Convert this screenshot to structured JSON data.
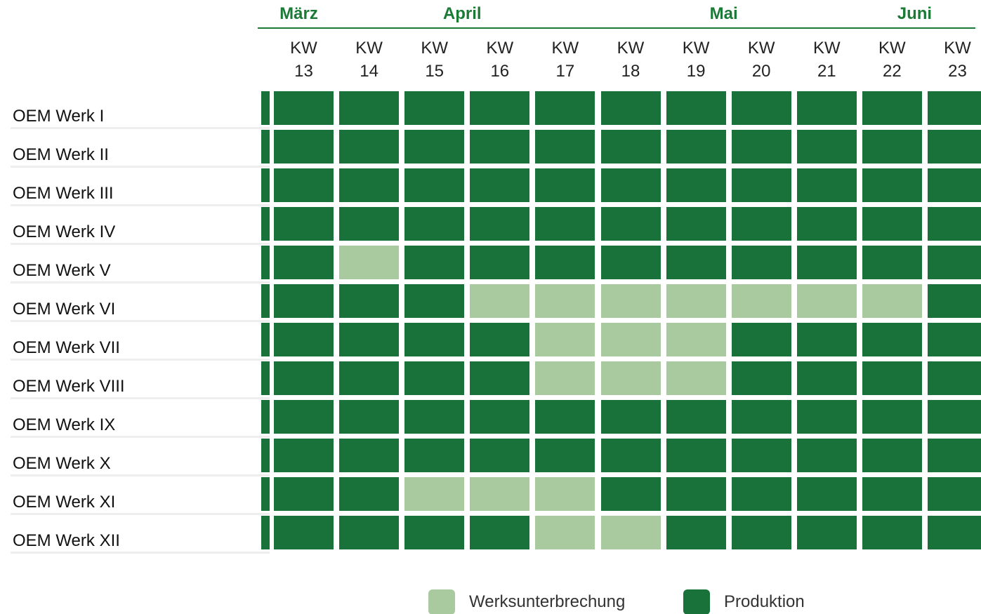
{
  "months": [
    {
      "label": "März",
      "from": 1,
      "to": 1
    },
    {
      "label": "April",
      "from": 2,
      "to": 5
    },
    {
      "label": "Mai",
      "from": 6,
      "to": 9
    },
    {
      "label": "Juni",
      "from": 10,
      "to": 11
    }
  ],
  "weeks": [
    null,
    "KW 13",
    "KW 14",
    "KW 15",
    "KW 16",
    "KW 17",
    "KW 18",
    "KW 19",
    "KW 20",
    "KW 21",
    "KW 22",
    "KW 23"
  ],
  "rows": [
    {
      "label": "OEM Werk I",
      "cells": [
        1,
        1,
        1,
        1,
        1,
        1,
        1,
        1,
        1,
        1,
        1,
        1
      ]
    },
    {
      "label": "OEM Werk II",
      "cells": [
        1,
        1,
        1,
        1,
        1,
        1,
        1,
        1,
        1,
        1,
        1,
        1
      ]
    },
    {
      "label": "OEM Werk III",
      "cells": [
        1,
        1,
        1,
        1,
        1,
        1,
        1,
        1,
        1,
        1,
        1,
        1
      ]
    },
    {
      "label": "OEM Werk IV",
      "cells": [
        1,
        1,
        1,
        1,
        1,
        1,
        1,
        1,
        1,
        1,
        1,
        1
      ]
    },
    {
      "label": "OEM Werk V",
      "cells": [
        1,
        1,
        0,
        1,
        1,
        1,
        1,
        1,
        1,
        1,
        1,
        1
      ]
    },
    {
      "label": "OEM Werk VI",
      "cells": [
        1,
        1,
        1,
        1,
        0,
        0,
        0,
        0,
        0,
        0,
        0,
        1
      ]
    },
    {
      "label": "OEM Werk VII",
      "cells": [
        1,
        1,
        1,
        1,
        1,
        0,
        0,
        0,
        1,
        1,
        1,
        1
      ]
    },
    {
      "label": "OEM Werk VIII",
      "cells": [
        1,
        1,
        1,
        1,
        1,
        0,
        0,
        0,
        1,
        1,
        1,
        1
      ]
    },
    {
      "label": "OEM Werk IX",
      "cells": [
        1,
        1,
        1,
        1,
        1,
        1,
        1,
        1,
        1,
        1,
        1,
        1
      ]
    },
    {
      "label": "OEM Werk X",
      "cells": [
        1,
        1,
        1,
        1,
        1,
        1,
        1,
        1,
        1,
        1,
        1,
        1
      ]
    },
    {
      "label": "OEM Werk XI",
      "cells": [
        1,
        1,
        1,
        0,
        0,
        0,
        1,
        1,
        1,
        1,
        1,
        1
      ]
    },
    {
      "label": "OEM Werk XII",
      "cells": [
        1,
        1,
        1,
        1,
        1,
        0,
        0,
        1,
        1,
        1,
        1,
        1
      ]
    }
  ],
  "legend": [
    {
      "label": "Werksunterbrechung",
      "color": "#a9c99e"
    },
    {
      "label": "Produktion",
      "color": "#19723a"
    }
  ]
}
